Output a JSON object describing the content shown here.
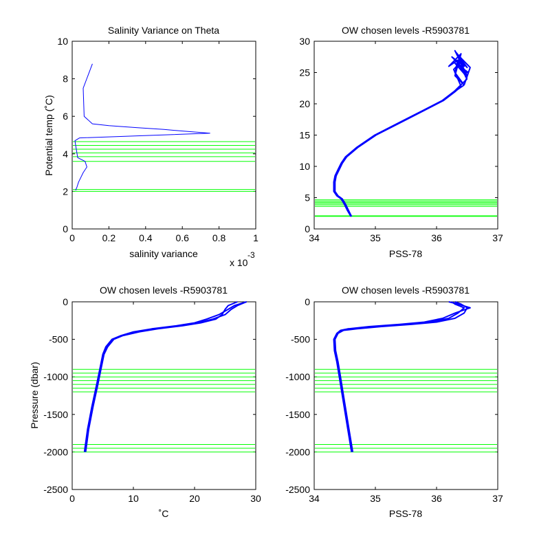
{
  "figure": {
    "background": "#ffffff",
    "profile_color": "#0000ff",
    "level_color": "#00ff00",
    "axis_color": "#000000"
  },
  "chart_data": [
    {
      "id": "salvar",
      "type": "line",
      "title": "Salinity Variance on Theta",
      "xlabel": "salinity variance",
      "ylabel": "Potential temp (˚C)",
      "xlim": [
        0,
        1
      ],
      "ylim": [
        0,
        10
      ],
      "x_ticks": [
        0,
        0.2,
        0.4,
        0.6,
        0.8,
        1
      ],
      "x_tick_labels": [
        "0",
        "0.2",
        "0.4",
        "0.6",
        "0.8",
        "1"
      ],
      "y_ticks": [
        0,
        2,
        4,
        6,
        8,
        10
      ],
      "y_tick_labels": [
        "0",
        "2",
        "4",
        "6",
        "8",
        "10"
      ],
      "x_multiplier": "x 10",
      "x_multiplier_exponent": "-3",
      "grid": false,
      "series": [
        {
          "x": [
            0.11,
            0.06,
            0.065,
            0.11,
            0.2,
            0.35,
            0.5,
            0.62,
            0.75,
            0.04,
            0.015,
            0.02,
            0.03,
            0.07,
            0.08,
            0.06,
            0.035,
            0.025,
            0.02,
            0.02
          ],
          "y": [
            8.8,
            7.5,
            6,
            5.6,
            5.5,
            5.4,
            5.3,
            5.2,
            5.1,
            4.85,
            4.7,
            4.4,
            3.8,
            3.6,
            3.3,
            3,
            2.5,
            2.2,
            2.1,
            2.05
          ]
        }
      ],
      "hlines": [
        4.65,
        4.45,
        4.25,
        4.05,
        3.85,
        3.6,
        2.1,
        2.0
      ]
    },
    {
      "id": "theta_s",
      "type": "line",
      "title": "OW chosen levels -R5903781",
      "xlabel": "PSS-78",
      "ylabel": "",
      "xlim": [
        34,
        37
      ],
      "ylim": [
        0,
        30
      ],
      "x_ticks": [
        34,
        35,
        36,
        37
      ],
      "x_tick_labels": [
        "34",
        "35",
        "36",
        "37"
      ],
      "y_ticks": [
        0,
        5,
        10,
        15,
        20,
        25,
        30
      ],
      "y_tick_labels": [
        "0",
        "5",
        "10",
        "15",
        "20",
        "25",
        "30"
      ],
      "grid": false,
      "series": [
        {
          "x": [
            34.6,
            34.55,
            34.5,
            34.45,
            34.38,
            34.33,
            34.33,
            34.35,
            34.4,
            34.45,
            34.52,
            34.7,
            35,
            35.4,
            35.8,
            36.1,
            36.3,
            36.45
          ],
          "y": [
            2,
            3,
            4,
            4.8,
            5.3,
            6,
            7.5,
            8.5,
            9.5,
            10.5,
            11.5,
            13,
            15,
            17,
            19,
            20.5,
            22,
            23
          ]
        },
        {
          "x": [
            34.6,
            34.54,
            34.49,
            34.44,
            34.37,
            34.32,
            34.32,
            34.34,
            34.39,
            34.44,
            34.51,
            34.69,
            34.99,
            35.39,
            35.79,
            36.09,
            36.29,
            36.5
          ],
          "y": [
            2,
            3,
            4,
            4.8,
            5.3,
            6,
            7.5,
            8.5,
            9.5,
            10.5,
            11.5,
            13,
            15,
            17,
            19,
            20.5,
            22,
            24
          ]
        },
        {
          "x": [
            34.61,
            34.56,
            34.51,
            34.46,
            34.39,
            34.34,
            34.34,
            34.36,
            34.41,
            34.46,
            34.53,
            34.71,
            35.01,
            35.41,
            35.81,
            36.11,
            36.31,
            36.4
          ],
          "y": [
            2,
            3,
            4,
            4.8,
            5.3,
            6,
            7.5,
            8.5,
            9.5,
            10.5,
            11.5,
            13,
            15,
            17,
            19,
            20.5,
            22,
            22.8
          ]
        },
        {
          "x": [
            36.45,
            36.3,
            36.35,
            36.2,
            36.4,
            36.3,
            36.45
          ],
          "y": [
            23,
            25,
            27,
            26,
            28,
            24.5,
            23
          ]
        },
        {
          "x": [
            36.5,
            36.35,
            36.5,
            36.25,
            36.45,
            36.3,
            36.5
          ],
          "y": [
            24,
            26.5,
            25,
            27.5,
            26,
            28.5,
            24.5
          ]
        },
        {
          "x": [
            36.4,
            36.28,
            36.42,
            36.32,
            36.5,
            36.38,
            36.48
          ],
          "y": [
            22.8,
            25.5,
            27,
            28.2,
            25.8,
            27,
            24.2
          ]
        },
        {
          "x": [
            36.45,
            36.55,
            36.35,
            36.48,
            36.3,
            36.52
          ],
          "y": [
            23,
            25.8,
            27.8,
            24.5,
            26.5,
            25
          ]
        }
      ],
      "hlines": [
        4.65,
        4.45,
        4.25,
        4.05,
        3.85,
        3.6,
        2.1,
        2.0
      ]
    },
    {
      "id": "p_t",
      "type": "line",
      "title": "OW chosen levels -R5903781",
      "xlabel": "˚C",
      "ylabel": "Pressure (dbar)",
      "xlim": [
        0,
        30
      ],
      "ylim": [
        -2500,
        0
      ],
      "x_ticks": [
        0,
        10,
        20,
        30
      ],
      "x_tick_labels": [
        "0",
        "10",
        "20",
        "30"
      ],
      "y_ticks": [
        0,
        -500,
        -1000,
        -1500,
        -2000,
        -2500
      ],
      "y_tick_labels": [
        "0",
        "-500",
        "-1000",
        "-1500",
        "-2000",
        "-2500"
      ],
      "grid": false,
      "series": [
        {
          "x": [
            2,
            2.5,
            3.2,
            4,
            4.5,
            5,
            5.5,
            6.5,
            8,
            10,
            13,
            17,
            20,
            22,
            24,
            25.5,
            26.5,
            28.5
          ],
          "y": [
            -2000,
            -1700,
            -1400,
            -1100,
            -900,
            -700,
            -600,
            -500,
            -450,
            -400,
            -360,
            -320,
            -280,
            -230,
            -170,
            -100,
            -50,
            0
          ]
        },
        {
          "x": [
            2.1,
            2.6,
            3.3,
            4.1,
            4.6,
            5.1,
            5.6,
            6.6,
            8.1,
            10.5,
            13.5,
            17.5,
            20.5,
            23,
            25,
            26,
            27,
            28.5
          ],
          "y": [
            -2000,
            -1700,
            -1400,
            -1100,
            -900,
            -700,
            -600,
            -500,
            -450,
            -400,
            -360,
            -320,
            -280,
            -230,
            -170,
            -100,
            -50,
            0
          ]
        },
        {
          "x": [
            2.2,
            2.7,
            3.4,
            4.2,
            4.7,
            5.2,
            5.8,
            6.8,
            8.3,
            11,
            14,
            18,
            21,
            23.5,
            24.5,
            25,
            25.5,
            27
          ],
          "y": [
            -2000,
            -1700,
            -1400,
            -1100,
            -900,
            -700,
            -600,
            -500,
            -450,
            -400,
            -360,
            -320,
            -280,
            -230,
            -170,
            -100,
            -50,
            0
          ]
        }
      ],
      "hlines": [
        -900,
        -950,
        -1000,
        -1050,
        -1100,
        -1150,
        -1200,
        -1900,
        -1950,
        -2000
      ]
    },
    {
      "id": "p_s",
      "type": "line",
      "title": "OW chosen levels -R5903781",
      "xlabel": "PSS-78",
      "ylabel": "",
      "xlim": [
        34,
        37
      ],
      "ylim": [
        -2500,
        0
      ],
      "x_ticks": [
        34,
        35,
        36,
        37
      ],
      "x_tick_labels": [
        "34",
        "35",
        "36",
        "37"
      ],
      "y_ticks": [
        0,
        -500,
        -1000,
        -1500,
        -2000,
        -2500
      ],
      "y_tick_labels": [
        "0",
        "-500",
        "-1000",
        "-1500",
        "-2000",
        "-2500"
      ],
      "grid": false,
      "series": [
        {
          "x": [
            34.62,
            34.56,
            34.48,
            34.42,
            34.38,
            34.34,
            34.33,
            34.38,
            34.45,
            34.6,
            35,
            35.5,
            35.9,
            36.2,
            36.35,
            36.45,
            36.3,
            36.25
          ],
          "y": [
            -2000,
            -1700,
            -1300,
            -1000,
            -800,
            -650,
            -500,
            -420,
            -380,
            -360,
            -330,
            -300,
            -270,
            -220,
            -150,
            -80,
            -30,
            0
          ]
        },
        {
          "x": [
            34.63,
            34.57,
            34.49,
            34.43,
            34.39,
            34.35,
            34.34,
            34.39,
            34.48,
            34.7,
            35.1,
            35.6,
            36,
            36.3,
            36.45,
            36.5,
            36.4,
            36.3
          ],
          "y": [
            -2000,
            -1700,
            -1300,
            -1000,
            -800,
            -650,
            -500,
            -420,
            -380,
            -360,
            -330,
            -300,
            -270,
            -220,
            -150,
            -80,
            -30,
            0
          ]
        },
        {
          "x": [
            34.61,
            34.55,
            34.47,
            34.41,
            34.37,
            34.33,
            34.32,
            34.37,
            34.43,
            34.55,
            34.9,
            35.4,
            35.8,
            36.1,
            36.3,
            36.55,
            36.35,
            36.2
          ],
          "y": [
            -2000,
            -1700,
            -1300,
            -1000,
            -800,
            -650,
            -500,
            -420,
            -380,
            -360,
            -330,
            -300,
            -270,
            -220,
            -150,
            -80,
            -30,
            0
          ]
        }
      ],
      "hlines": [
        -900,
        -950,
        -1000,
        -1050,
        -1100,
        -1150,
        -1200,
        -1900,
        -1950,
        -2000
      ]
    }
  ]
}
